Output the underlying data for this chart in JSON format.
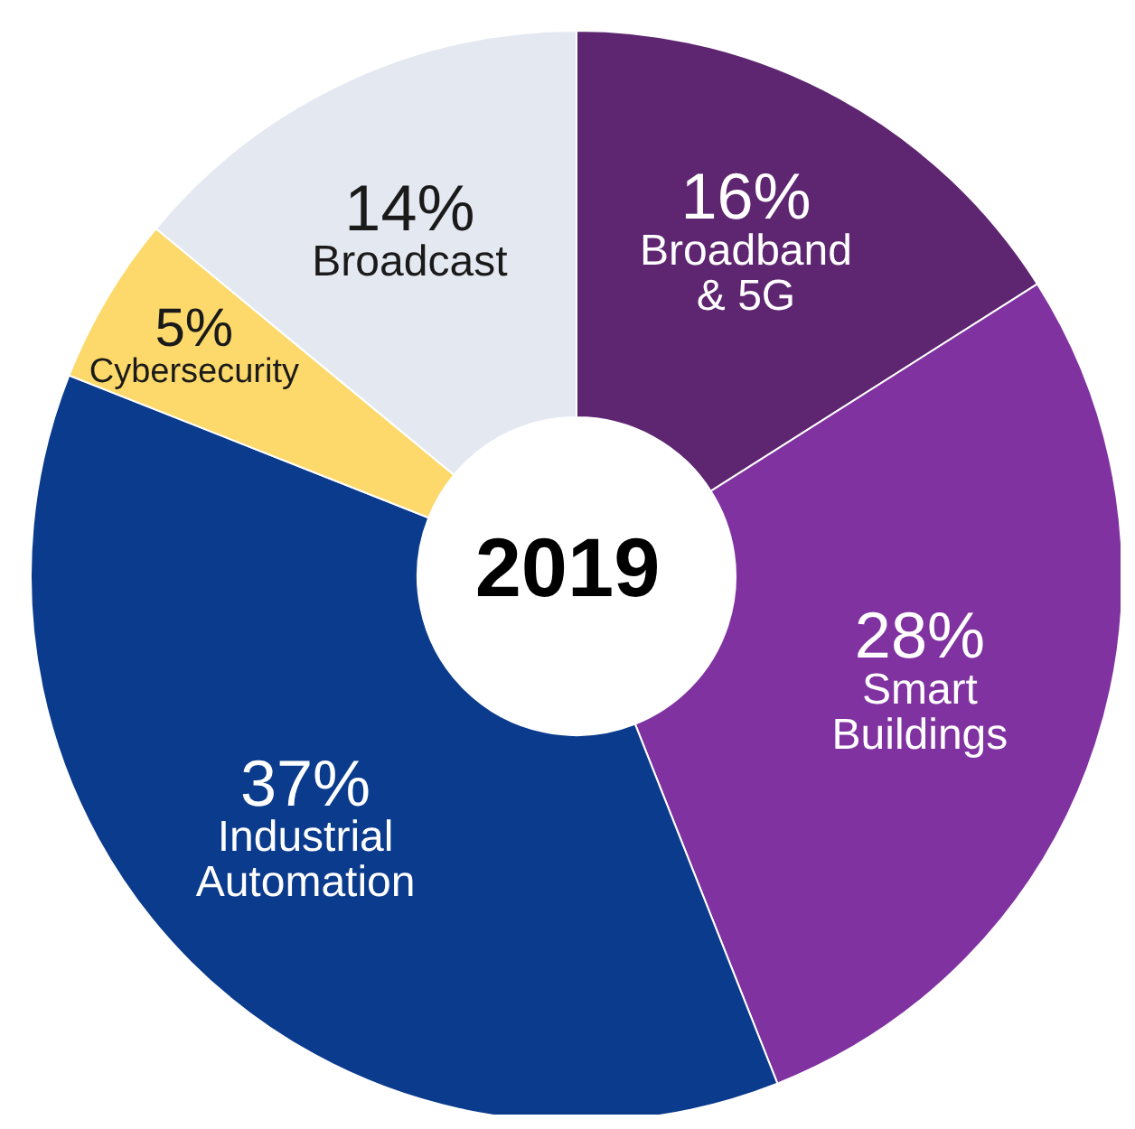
{
  "chart_data": {
    "type": "donut",
    "title": "2019",
    "categories": [
      "Broadband & 5G",
      "Smart Buildings",
      "Industrial Automation",
      "Cybersecurity",
      "Broadcast"
    ],
    "values": [
      16,
      28,
      37,
      5,
      14
    ],
    "colors": [
      "#5e2570",
      "#8033a0",
      "#0b3b8c",
      "#fcd96a",
      "#e4e9f1"
    ],
    "value_labels": [
      "16%",
      "28%",
      "37%",
      "5%",
      "14%"
    ]
  }
}
